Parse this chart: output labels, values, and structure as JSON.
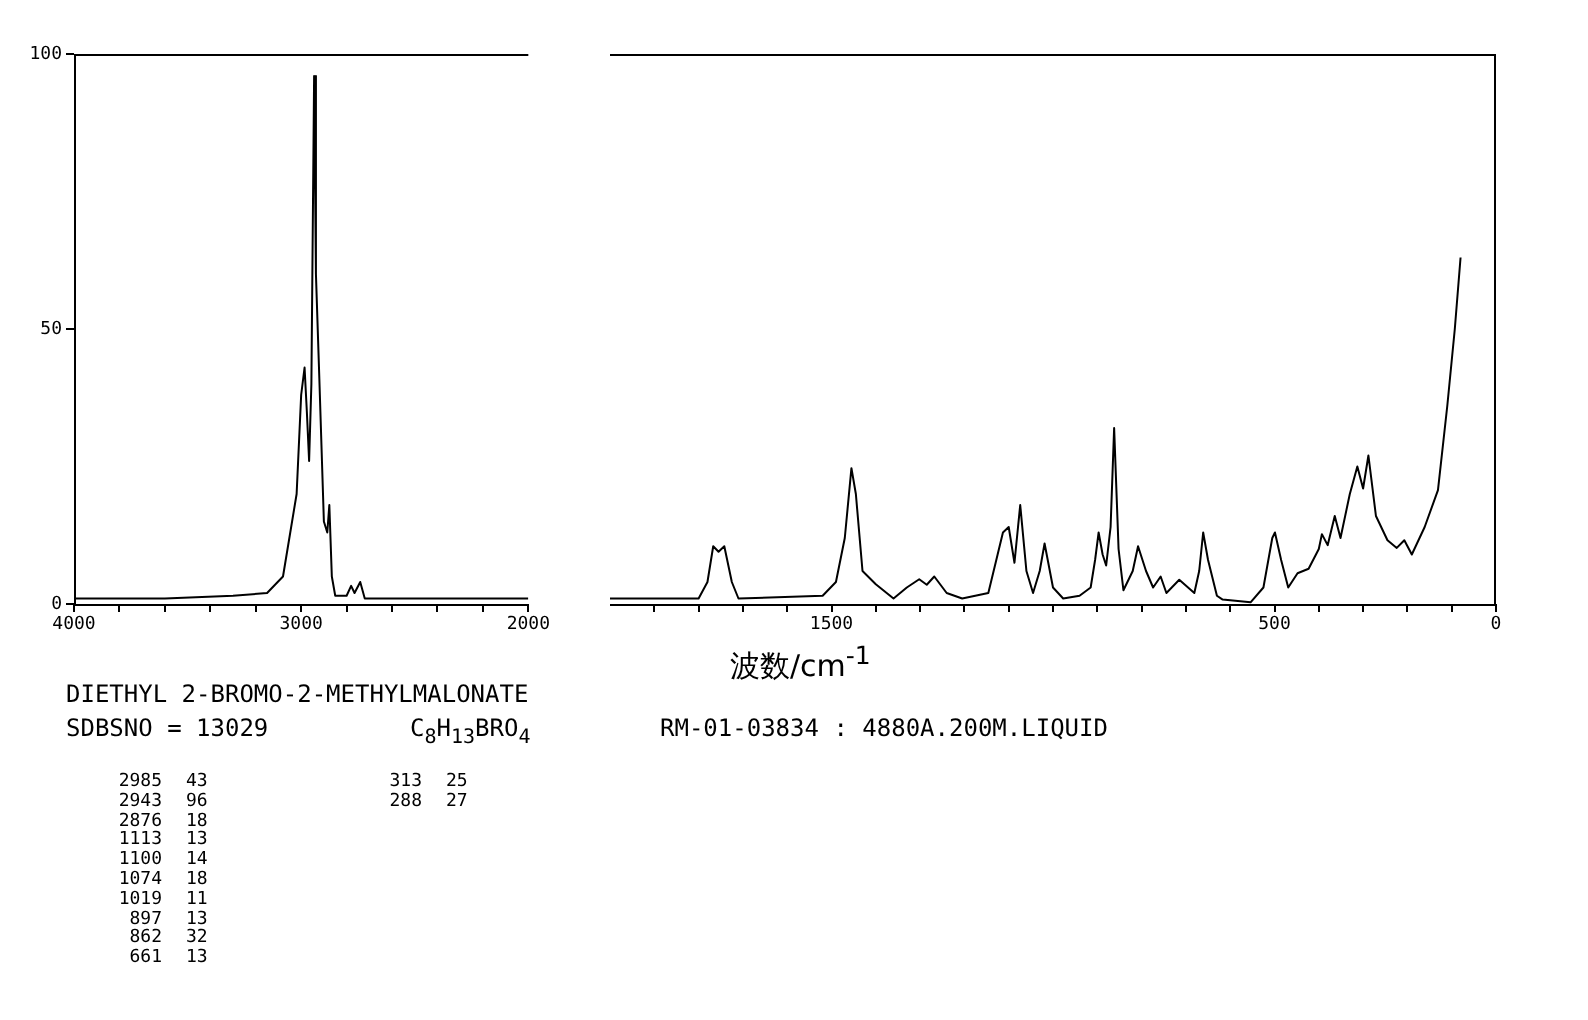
{
  "chart_data": [
    {
      "type": "line",
      "xlim": [
        4000,
        2000
      ],
      "ylim": [
        0,
        100
      ],
      "xticks": [
        4000,
        {
          "value": 3800,
          "label": null
        },
        {
          "value": 3600,
          "label": null
        },
        {
          "value": 3400,
          "label": null
        },
        {
          "value": 3200,
          "label": null
        },
        3000,
        {
          "value": 2800,
          "label": null
        },
        {
          "value": 2600,
          "label": null
        },
        {
          "value": 2400,
          "label": null
        },
        {
          "value": 2200,
          "label": null
        },
        2000
      ],
      "yticks": [
        0,
        50,
        100
      ],
      "grid": false,
      "legend": false,
      "series": [
        {
          "color": "#000000",
          "x": [
            4000,
            3600,
            3300,
            3150,
            3080,
            3020,
            3000,
            2985,
            2975,
            2965,
            2955,
            2943,
            2935,
            2920,
            2900,
            2885,
            2876,
            2865,
            2850,
            2800,
            2780,
            2765,
            2740,
            2720,
            2500,
            2200,
            2000
          ],
          "values": [
            1,
            1,
            1.5,
            2,
            5,
            20,
            38,
            43,
            35,
            26,
            40,
            96,
            60,
            41,
            15,
            13,
            18,
            5,
            1.5,
            1.5,
            3.3,
            2,
            4,
            1,
            1,
            1,
            1
          ]
        }
      ],
      "annotations": [
        "DIETHYL 2-BROMO-2-METHYLMALONATE",
        "SDBSNO = 13029",
        "C$_{8}$H$_{13}$BRO$_{4}$",
        "RM-01-03834 : 4880A.200M.LIQUID",
        "2985 43",
        "2943 96",
        "2876 18",
        "1113 13",
        "1100 14",
        "1074 18",
        "1019 11",
        "897 13",
        "862 32",
        "661 13",
        "313 25",
        "288 27"
      ]
    },
    {
      "type": "line",
      "xlim": [
        2000,
        0
      ],
      "ylim": [
        0,
        100
      ],
      "tick_labels": "x",
      "xlabel": "波数/cm$^{-1}$",
      "xticks": [
        {
          "value": 1900,
          "label": null
        },
        {
          "value": 1800,
          "label": null
        },
        {
          "value": 1700,
          "label": null
        },
        {
          "value": 1600,
          "label": null
        },
        1500,
        {
          "value": 1400,
          "label": null
        },
        {
          "value": 1300,
          "label": null
        },
        {
          "value": 1200,
          "label": null
        },
        {
          "value": 1100,
          "label": null
        },
        {
          "value": 1000,
          "label": null
        },
        {
          "value": 900,
          "label": null
        },
        {
          "value": 800,
          "label": null
        },
        {
          "value": 700,
          "label": null
        },
        {
          "value": 600,
          "label": null
        },
        500,
        {
          "value": 400,
          "label": null
        },
        {
          "value": 300,
          "label": null
        },
        {
          "value": 200,
          "label": null
        },
        {
          "value": 100,
          "label": null
        },
        0
      ],
      "grid": false,
      "legend": false,
      "series": [
        {
          "color": "#000000",
          "x": [
            2000,
            1800,
            1780,
            1767,
            1755,
            1742,
            1725,
            1710,
            1520,
            1490,
            1470,
            1455,
            1445,
            1430,
            1400,
            1360,
            1330,
            1302,
            1285,
            1268,
            1240,
            1205,
            1146,
            1125,
            1113,
            1100,
            1087,
            1074,
            1060,
            1045,
            1030,
            1019,
            1000,
            977,
            940,
            915,
            905,
            897,
            888,
            880,
            870,
            862,
            852,
            841,
            820,
            808,
            790,
            774,
            757,
            744,
            715,
            681,
            670,
            661,
            650,
            630,
            617,
            554,
            525,
            505,
            499,
            485,
            469,
            448,
            423,
            400,
            393,
            380,
            364,
            351,
            330,
            313,
            300,
            288,
            271,
            245,
            224,
            207,
            190,
            161,
            131,
            110,
            93,
            80
          ],
          "values": [
            1,
            1,
            4,
            10.5,
            9.5,
            10.5,
            4,
            1,
            1.5,
            4,
            12,
            24.7,
            20,
            6,
            3.6,
            1,
            3,
            4.5,
            3.5,
            5,
            2,
            1,
            2,
            9,
            13,
            14,
            7.5,
            18,
            6,
            2,
            6,
            11,
            3,
            1,
            1.5,
            3,
            8,
            13,
            9,
            7,
            14,
            32,
            10,
            2.5,
            6,
            10.5,
            6,
            3,
            5,
            2,
            4.4,
            2,
            6,
            13,
            8,
            1.5,
            0.8,
            0.3,
            3,
            12,
            13,
            8,
            3,
            5.6,
            6.4,
            10,
            12.7,
            10.7,
            16,
            12,
            20,
            25,
            21,
            27,
            16,
            11.6,
            10.2,
            11.6,
            9,
            14,
            20.7,
            36,
            50,
            63
          ]
        }
      ]
    }
  ]
}
